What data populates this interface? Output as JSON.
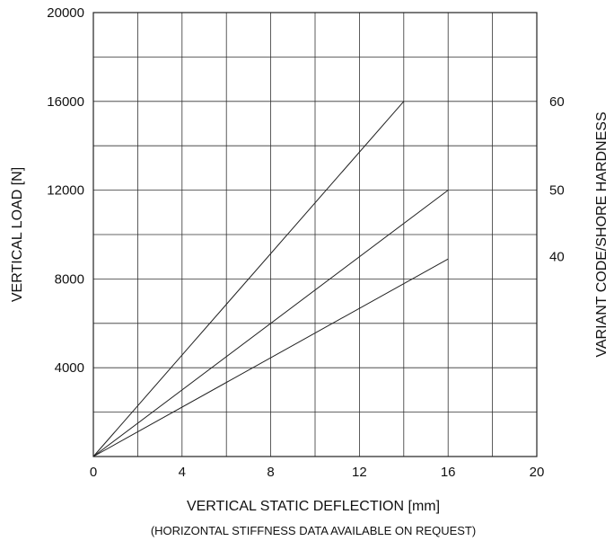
{
  "chart_data": {
    "type": "line",
    "title": "",
    "xlabel": "VERTICAL STATIC DEFLECTION [mm]",
    "ylabel": "VERTICAL LOAD [N]",
    "y2label": "VARIANT CODE/SHORE HARDNESS",
    "note": "(HORIZONTAL STIFFNESS DATA AVAILABLE ON REQUEST)",
    "xlim": [
      0,
      20
    ],
    "ylim": [
      0,
      20000
    ],
    "x_ticks": [
      "0",
      "4",
      "8",
      "12",
      "16",
      "20"
    ],
    "y_ticks": [
      "4000",
      "8000",
      "12000",
      "16000",
      "20000"
    ],
    "x_ticks_values": [
      0,
      4,
      8,
      12,
      16,
      20
    ],
    "y_ticks_values": [
      4000,
      8000,
      12000,
      16000,
      20000
    ],
    "grid": true,
    "x_minor_step": 2,
    "y_minor_step": 2000,
    "series": [
      {
        "name": "60",
        "x": [
          0,
          14
        ],
        "y": [
          0,
          16000
        ],
        "right_label_y": 16000
      },
      {
        "name": "50",
        "x": [
          0,
          16
        ],
        "y": [
          0,
          12000
        ],
        "right_label_y": 12000
      },
      {
        "name": "40",
        "x": [
          0,
          16
        ],
        "y": [
          0,
          8900
        ],
        "right_label_y": 9000
      }
    ]
  }
}
